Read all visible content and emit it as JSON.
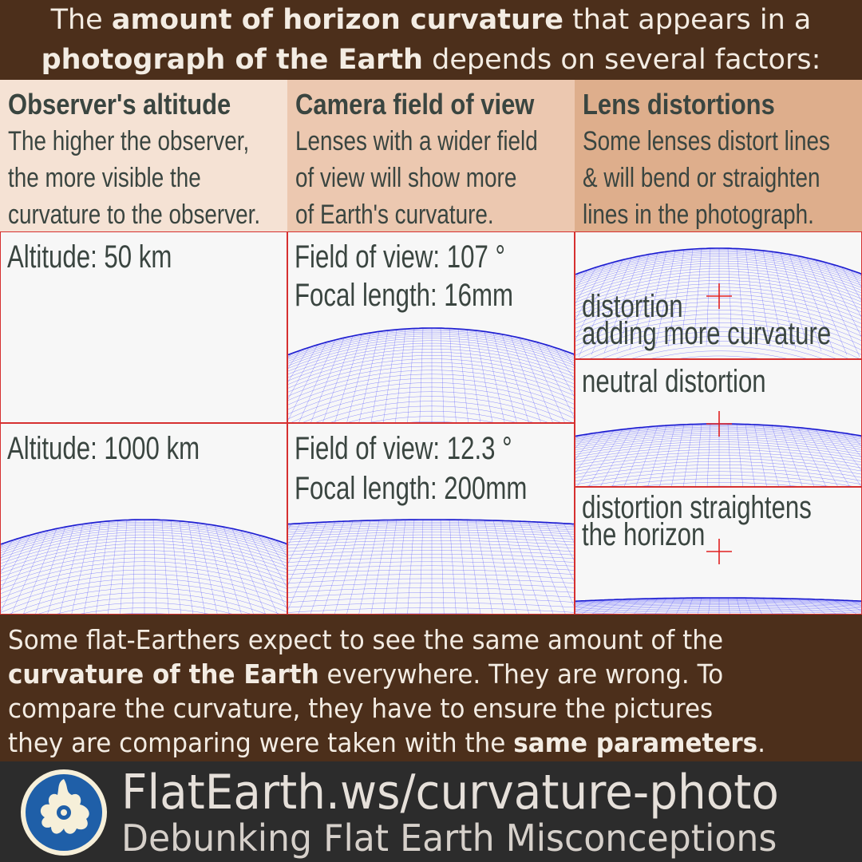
{
  "header": {
    "line1_a": "The ",
    "line1_b": "amount of horizon curvature",
    "line1_c": " that appears in a",
    "line2_a": "photograph of the Earth",
    "line2_b": " depends on several factors:"
  },
  "columns": [
    {
      "title": "Observer's altitude",
      "desc": "The higher the observer,\nthe more visible the\ncurvature to the observer."
    },
    {
      "title": "Camera field of view",
      "desc": "Lenses with a wider field\nof view will show more\nof Earth's curvature."
    },
    {
      "title": "Lens distortions",
      "desc": "Some lenses distort lines\n& will bend or straighten\nlines in the photograph."
    }
  ],
  "panels": {
    "alt50": "Altitude: 50 km",
    "alt1000": "Altitude: 1000 km",
    "fov1_a": "Field of view: 107 °",
    "fov1_b": "Focal length: 16mm",
    "fov2_a": "Field of view: 12.3 °",
    "fov2_b": "Focal length: 200mm",
    "dist1_a": "distortion",
    "dist1_b": "adding more curvature",
    "dist2": "neutral distortion",
    "dist3_a": "distortion straightens",
    "dist3_b": "the horizon"
  },
  "footer": {
    "t1": "Some flat-Earthers expect to see the same amount of the",
    "t2b": "curvature of the Earth",
    "t2": " everywhere. They are wrong. To",
    "t3": "compare the curvature, they have to ensure the pictures",
    "t4": "they are comparing were taken with the ",
    "t4b": "same parameters",
    "t4e": "."
  },
  "brand": {
    "url": "FlatEarth.ws/curvature-photo",
    "tagline": "Debunking Flat Earth Misconceptions"
  },
  "colors": {
    "grid": "#3a3aff",
    "horizon": "#1a1ad0",
    "crosshair": "#e02020",
    "panel_border": "#d63030"
  }
}
